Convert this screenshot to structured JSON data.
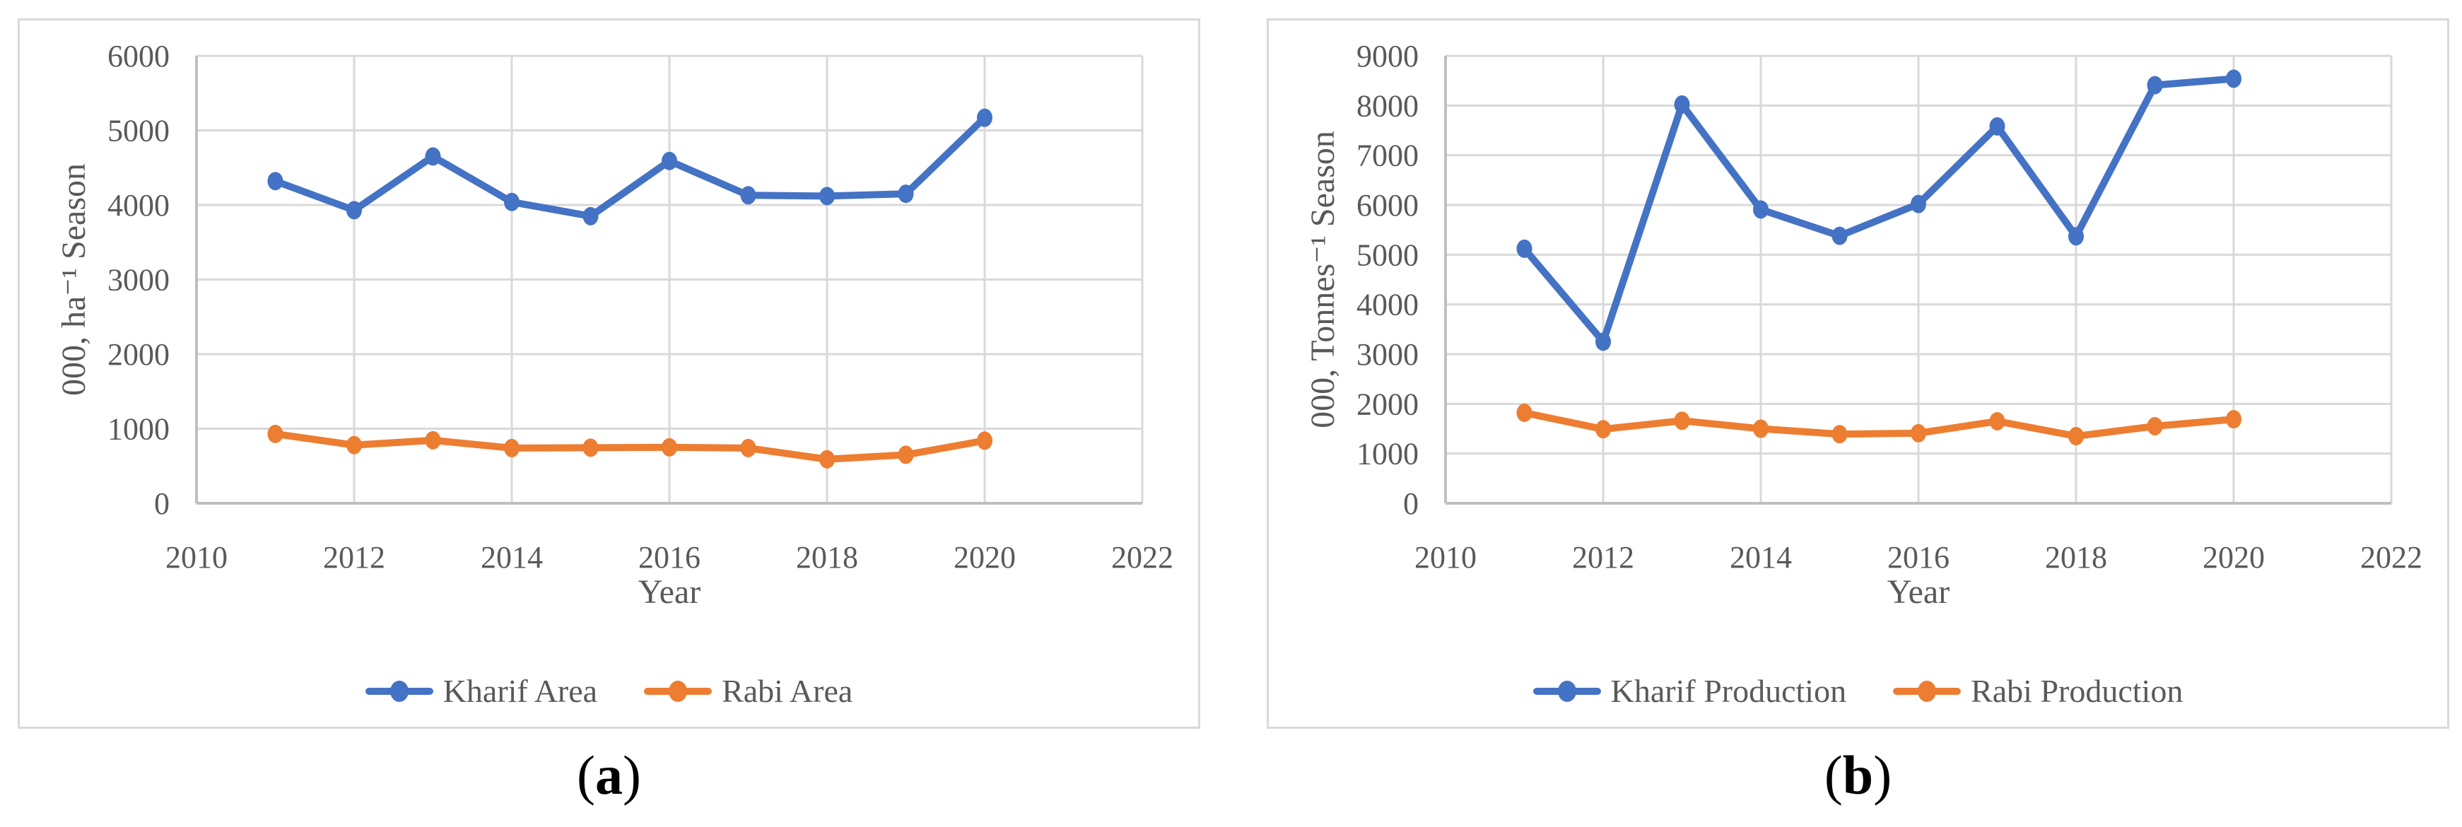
{
  "figure": {
    "panels": [
      {
        "caption": {
          "open": "(",
          "letter": "a",
          "close": ")"
        }
      },
      {
        "caption": {
          "open": "(",
          "letter": "b",
          "close": ")"
        }
      }
    ]
  },
  "colors": {
    "kharif": "#4472C4",
    "rabi": "#ED7D31",
    "gridline": "#D9D9D9",
    "axis_line": "#BFBFBF",
    "text": "#595959",
    "panel_border": "#D9D9D9",
    "caption_text": "#000000"
  },
  "chart_data": [
    {
      "type": "line",
      "title": "",
      "xlabel": "Year",
      "ylabel": "000, ha⁻¹ Season",
      "xlim": [
        2010,
        2022
      ],
      "ylim": [
        0,
        6000
      ],
      "xticks": [
        2010,
        2012,
        2014,
        2016,
        2018,
        2020,
        2022
      ],
      "yticks": [
        0,
        1000,
        2000,
        3000,
        4000,
        5000,
        6000
      ],
      "grid": true,
      "legend_position": "bottom",
      "x": [
        2011,
        2012,
        2013,
        2014,
        2015,
        2016,
        2017,
        2018,
        2019,
        2020
      ],
      "series": [
        {
          "name": "Kharif Area",
          "color_key": "kharif",
          "values": [
            4320,
            3930,
            4650,
            4040,
            3850,
            4590,
            4130,
            4120,
            4150,
            5170
          ]
        },
        {
          "name": "Rabi Area",
          "color_key": "rabi",
          "values": [
            930,
            780,
            845,
            740,
            745,
            750,
            740,
            590,
            650,
            840
          ]
        }
      ]
    },
    {
      "type": "line",
      "title": "",
      "xlabel": "Year",
      "ylabel": "000, Tonnes⁻¹ Season",
      "xlim": [
        2010,
        2022
      ],
      "ylim": [
        0,
        9000
      ],
      "xticks": [
        2010,
        2012,
        2014,
        2016,
        2018,
        2020,
        2022
      ],
      "yticks": [
        0,
        1000,
        2000,
        3000,
        4000,
        5000,
        6000,
        7000,
        8000,
        9000
      ],
      "grid": true,
      "legend_position": "bottom",
      "x": [
        2011,
        2012,
        2013,
        2014,
        2015,
        2016,
        2017,
        2018,
        2019,
        2020
      ],
      "series": [
        {
          "name": "Kharif Production",
          "color_key": "kharif",
          "values": [
            5120,
            3250,
            8020,
            5910,
            5380,
            6020,
            7580,
            5370,
            8410,
            8540
          ]
        },
        {
          "name": "Rabi Production",
          "color_key": "rabi",
          "values": [
            1820,
            1490,
            1660,
            1500,
            1390,
            1410,
            1650,
            1350,
            1550,
            1690
          ]
        }
      ]
    }
  ]
}
